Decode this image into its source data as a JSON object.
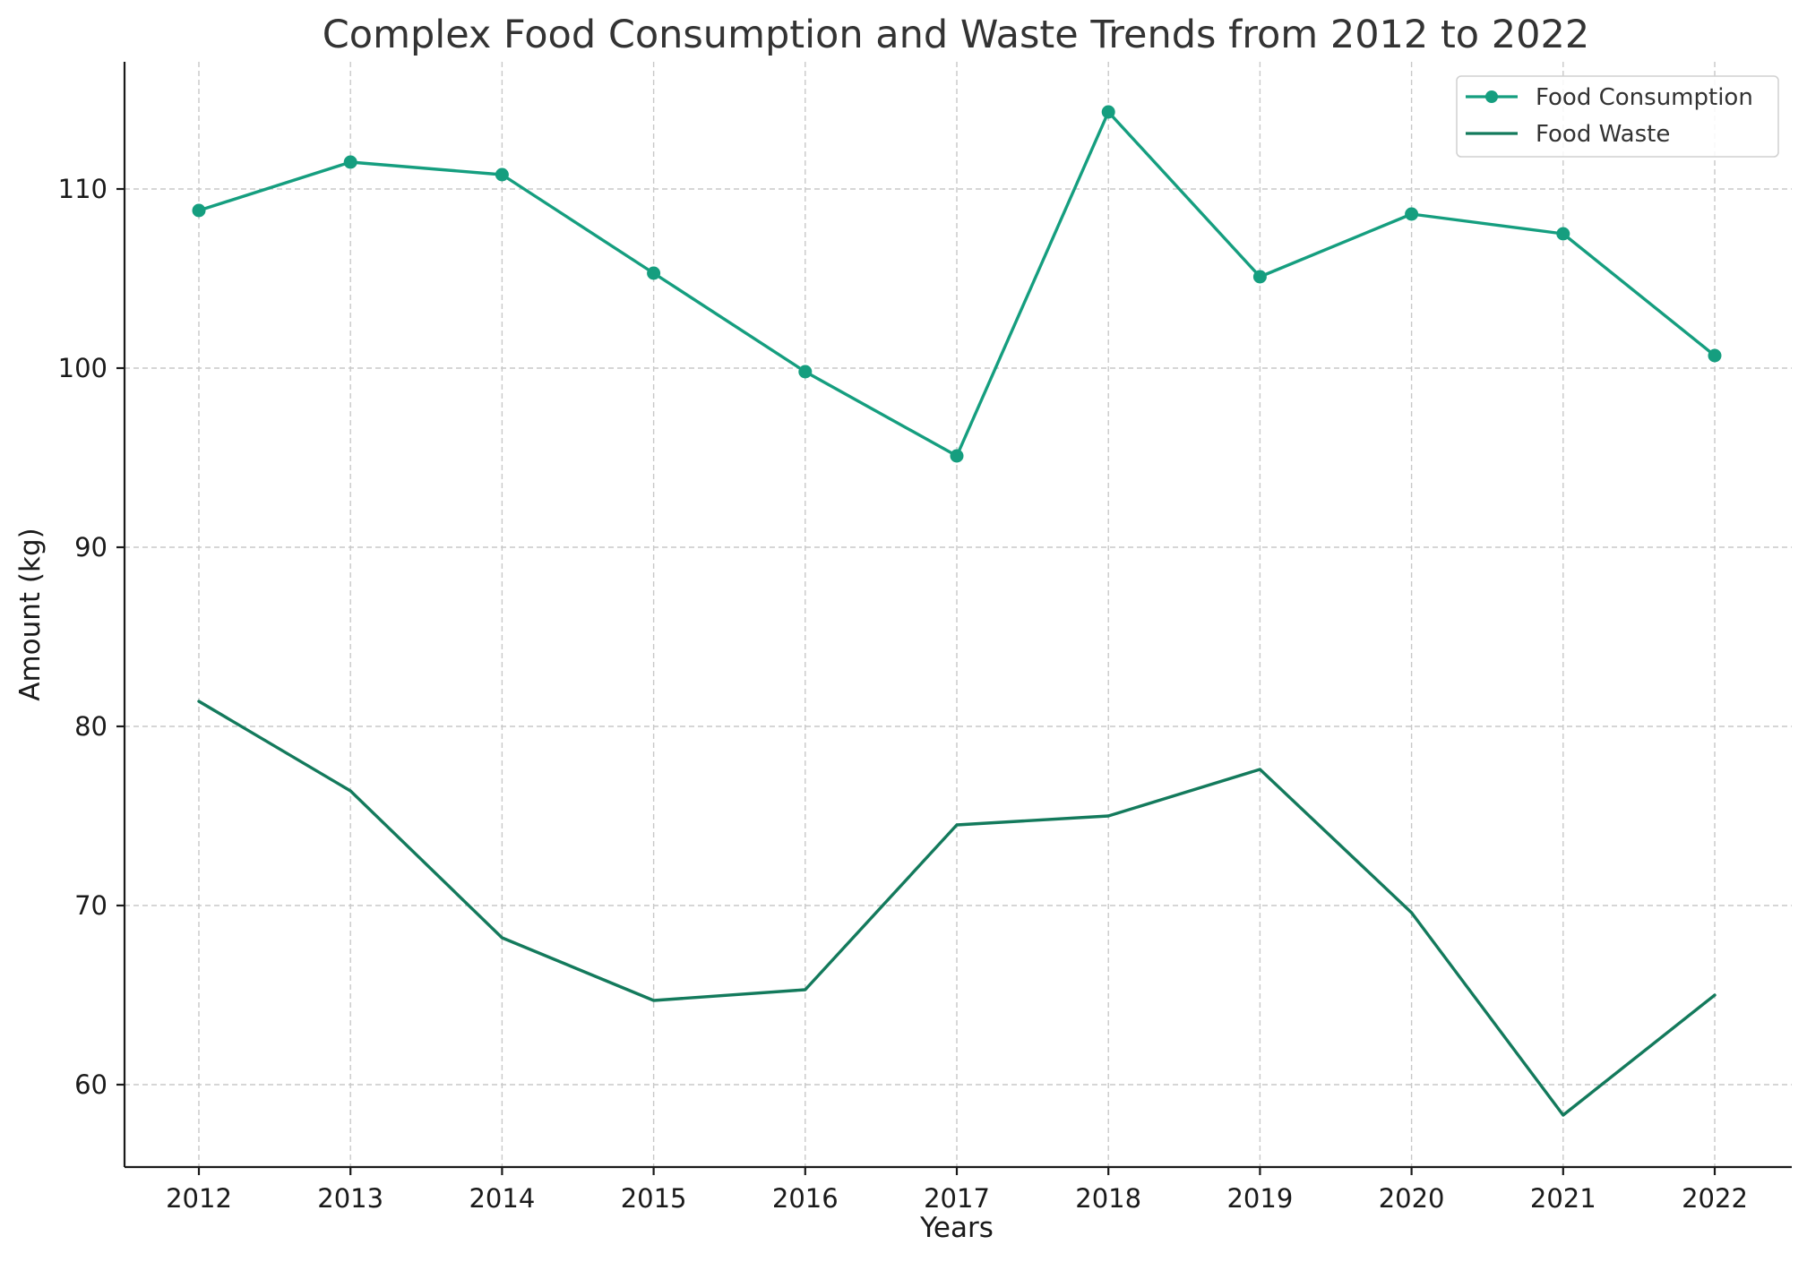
{
  "chart_data": {
    "type": "line",
    "title": "Complex Food Consumption and Waste Trends from 2012 to 2022",
    "xlabel": "Years",
    "ylabel": "Amount (kg)",
    "x": [
      "2012",
      "2013",
      "2014",
      "2015",
      "2016",
      "2017",
      "2018",
      "2019",
      "2020",
      "2021",
      "2022"
    ],
    "yticks": [
      60,
      70,
      80,
      90,
      100,
      110
    ],
    "ylim": [
      55.4,
      117.1
    ],
    "grid": true,
    "legend_position": "top-right",
    "series": [
      {
        "name": "Food Consumption",
        "color": "#159e7f",
        "marker": "circle",
        "values": [
          108.8,
          111.5,
          110.8,
          105.3,
          99.8,
          95.1,
          114.3,
          105.1,
          108.6,
          107.5,
          100.7
        ]
      },
      {
        "name": "Food Waste",
        "color": "#137a5c",
        "marker": "none",
        "values": [
          81.4,
          76.4,
          68.2,
          64.7,
          65.3,
          74.5,
          75.0,
          77.6,
          69.6,
          58.3,
          65.0
        ]
      }
    ]
  }
}
